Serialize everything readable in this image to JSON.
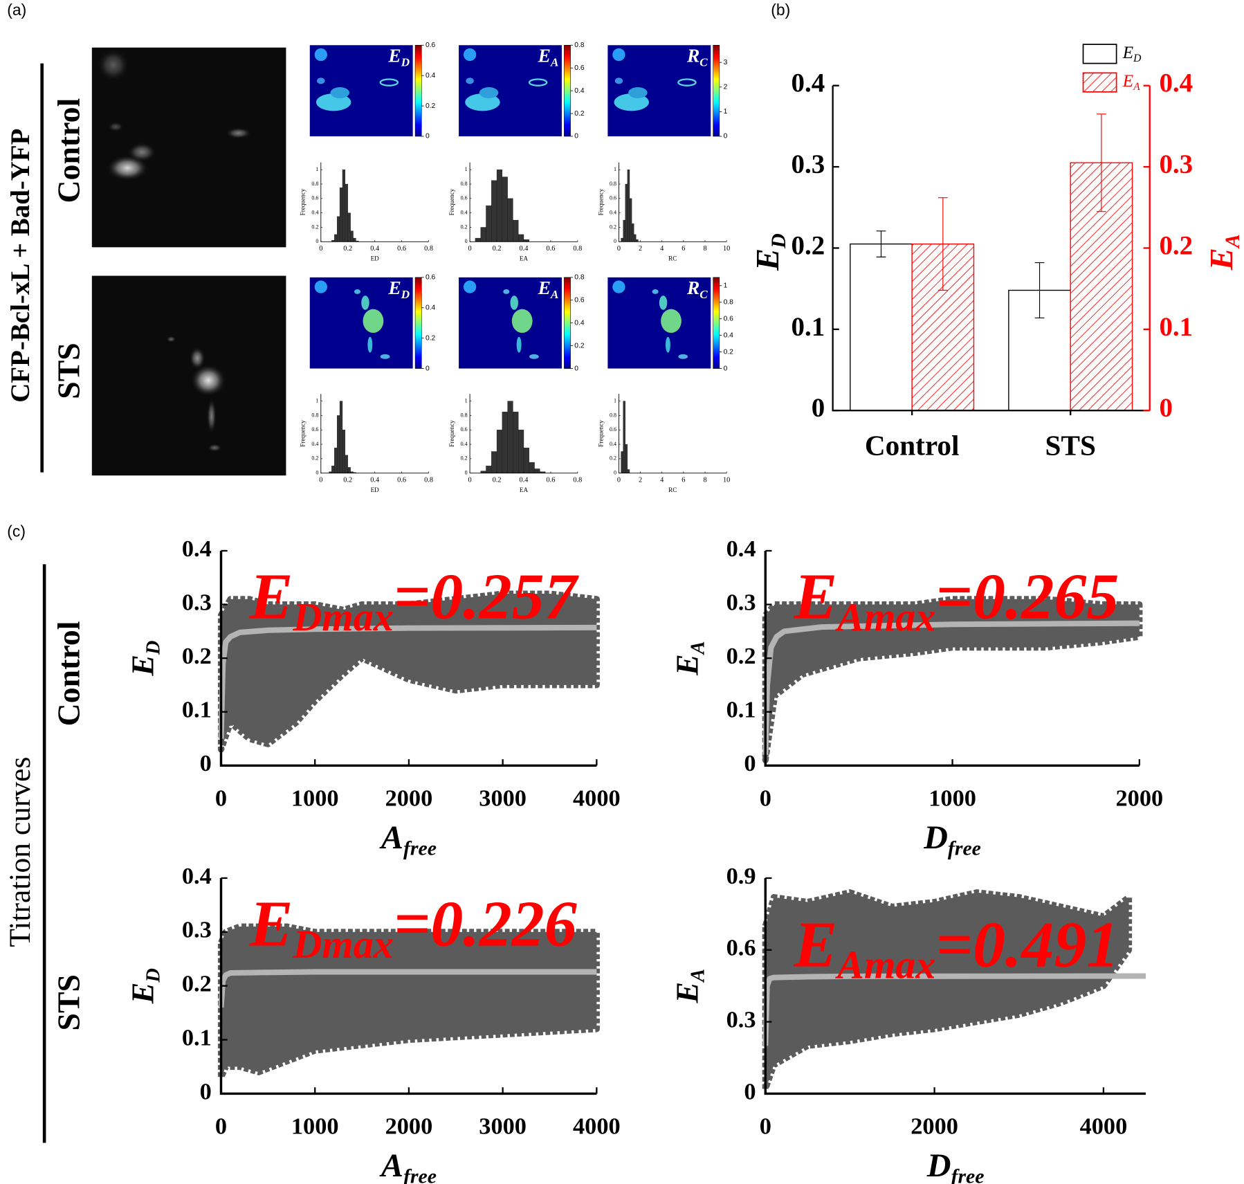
{
  "labels": {
    "a": "(a)",
    "b": "(b)",
    "c": "(c)",
    "construct": "CFP-Bcl-xL + Bad-YFP",
    "row_a_1": "Control",
    "row_a_2": "STS",
    "titration": "Titration curves",
    "row_c_1": "Control",
    "row_c_2": "STS"
  },
  "chart_data": [
    {
      "type": "colormap",
      "label": {
        "main": "E",
        "sub": "D"
      },
      "ylim": [
        0,
        0.6
      ],
      "yticks": [
        0,
        0.2,
        0.4,
        0.6
      ]
    },
    {
      "type": "colormap",
      "label": {
        "main": "E",
        "sub": "A"
      },
      "ylim": [
        0,
        0.8
      ],
      "yticks": [
        0,
        0.2,
        0.4,
        0.6,
        0.8
      ]
    },
    {
      "type": "colormap",
      "label": {
        "main": "R",
        "sub": "C"
      },
      "ylim": [
        0,
        3.7
      ],
      "yticks": [
        0,
        1,
        2,
        3
      ]
    },
    {
      "type": "histogram",
      "xlabel": "ED",
      "ylabel": "Frequency",
      "color": "#333333",
      "bins": [
        0.08,
        0.1,
        0.12,
        0.14,
        0.16,
        0.18,
        0.2,
        0.22,
        0.24,
        0.26,
        0.28
      ],
      "values": [
        0.02,
        0.1,
        0.35,
        0.75,
        1.0,
        0.8,
        0.4,
        0.15,
        0.05,
        0.01
      ],
      "xlim": [
        0,
        0.8
      ],
      "xticks": [
        0,
        0.2,
        0.4,
        0.6,
        0.8
      ],
      "ylim": [
        0,
        1.1
      ],
      "yticks": [
        0,
        0.2,
        0.4,
        0.6,
        0.8,
        1
      ]
    },
    {
      "type": "histogram",
      "xlabel": "EA",
      "ylabel": "Frequency",
      "color": "#333333",
      "bins": [
        0.04,
        0.08,
        0.12,
        0.16,
        0.2,
        0.24,
        0.28,
        0.32,
        0.36,
        0.4,
        0.44
      ],
      "values": [
        0.05,
        0.2,
        0.5,
        0.85,
        1.0,
        0.9,
        0.6,
        0.3,
        0.1,
        0.03
      ],
      "xlim": [
        0,
        0.8
      ],
      "xticks": [
        0,
        0.2,
        0.4,
        0.6,
        0.8
      ],
      "ylim": [
        0,
        1.1
      ],
      "yticks": [
        0,
        0.2,
        0.4,
        0.6,
        0.8,
        1
      ]
    },
    {
      "type": "histogram",
      "xlabel": "RC",
      "ylabel": "Frequency",
      "color": "#333333",
      "bins": [
        0.2,
        0.4,
        0.6,
        0.8,
        1.0,
        1.2,
        1.4,
        1.6,
        1.8
      ],
      "values": [
        0.05,
        0.3,
        0.8,
        1.0,
        0.6,
        0.25,
        0.1,
        0.03
      ],
      "xlim": [
        0,
        10
      ],
      "xticks": [
        0,
        2,
        4,
        6,
        8,
        10
      ],
      "ylim": [
        0,
        1.1
      ],
      "yticks": [
        0,
        0.2,
        0.4,
        0.6,
        0.8,
        1
      ]
    },
    {
      "type": "colormap",
      "label": {
        "main": "E",
        "sub": "D"
      },
      "ylim": [
        0,
        0.6
      ],
      "yticks": [
        0,
        0.2,
        0.4,
        0.6
      ]
    },
    {
      "type": "colormap",
      "label": {
        "main": "E",
        "sub": "A"
      },
      "ylim": [
        0,
        0.8
      ],
      "yticks": [
        0,
        0.2,
        0.4,
        0.6,
        0.8
      ]
    },
    {
      "type": "colormap",
      "label": {
        "main": "R",
        "sub": "C"
      },
      "ylim": [
        0,
        1.1
      ],
      "yticks": [
        0,
        0.2,
        0.4,
        0.6,
        0.8,
        1
      ]
    },
    {
      "type": "histogram",
      "xlabel": "ED",
      "ylabel": "Frequency",
      "color": "#333333",
      "bins": [
        0.06,
        0.08,
        0.1,
        0.12,
        0.14,
        0.16,
        0.18,
        0.2,
        0.22,
        0.24,
        0.26
      ],
      "values": [
        0.02,
        0.1,
        0.35,
        0.8,
        1.0,
        0.6,
        0.25,
        0.08,
        0.02,
        0.01
      ],
      "xlim": [
        0,
        0.8
      ],
      "xticks": [
        0,
        0.2,
        0.4,
        0.6,
        0.8
      ],
      "ylim": [
        0,
        1.1
      ],
      "yticks": [
        0,
        0.2,
        0.4,
        0.6,
        0.8,
        1
      ]
    },
    {
      "type": "histogram",
      "xlabel": "EA",
      "ylabel": "Frequency",
      "color": "#333333",
      "bins": [
        0.08,
        0.12,
        0.16,
        0.2,
        0.24,
        0.28,
        0.32,
        0.36,
        0.4,
        0.44,
        0.48,
        0.52,
        0.56
      ],
      "values": [
        0.03,
        0.1,
        0.3,
        0.6,
        0.85,
        1.0,
        0.85,
        0.6,
        0.35,
        0.15,
        0.06,
        0.02
      ],
      "xlim": [
        0,
        0.8
      ],
      "xticks": [
        0,
        0.2,
        0.4,
        0.6,
        0.8
      ],
      "ylim": [
        0,
        1.1
      ],
      "yticks": [
        0,
        0.2,
        0.4,
        0.6,
        0.8,
        1
      ]
    },
    {
      "type": "histogram",
      "xlabel": "RC",
      "ylabel": "Frequency",
      "color": "#333333",
      "bins": [
        0.2,
        0.4,
        0.6,
        0.8,
        1.0
      ],
      "values": [
        0.3,
        1.0,
        0.4,
        0.05
      ],
      "xlim": [
        0,
        10
      ],
      "xticks": [
        0,
        2,
        4,
        6,
        8,
        10
      ],
      "ylim": [
        0,
        1.1
      ],
      "yticks": [
        0,
        0.2,
        0.4,
        0.6,
        0.8,
        1
      ]
    },
    {
      "type": "bar",
      "categories": [
        "Control",
        "STS"
      ],
      "ylabel": {
        "main": "E",
        "sub": "D"
      },
      "y2label": {
        "main": "E",
        "sub": "A"
      },
      "series": [
        {
          "name": {
            "main": "E",
            "sub": "D"
          },
          "color": "#000000",
          "values": [
            0.205,
            0.148
          ],
          "errors": [
            0.016,
            0.034
          ]
        },
        {
          "name": {
            "main": "E",
            "sub": "A"
          },
          "color": "#ff0000",
          "hatch": true,
          "axis": "y2",
          "values": [
            0.205,
            0.305
          ],
          "errors": [
            0.057,
            0.06
          ]
        }
      ],
      "ylim": [
        0,
        0.4
      ],
      "yticks": [
        0,
        0.1,
        0.2,
        0.3,
        0.4
      ],
      "y2lim": [
        0,
        0.4
      ],
      "y2ticks": [
        0,
        0.1,
        0.2,
        0.3,
        0.4
      ]
    },
    {
      "type": "scatter",
      "xlabel": {
        "main": "A",
        "sub": "free"
      },
      "ylabel": {
        "main": "E",
        "sub": "D"
      },
      "annotation": {
        "main": "E",
        "sub": "Dmax",
        "rest": "=0.257"
      },
      "annotation_color": "#ff0000",
      "cloud_color": "#5b5b5b",
      "fit_color": "#b4b4b4",
      "cloud": {
        "x": [
          0,
          100,
          300,
          500,
          800,
          1000,
          1300,
          1500,
          2000,
          2500,
          3000,
          3500,
          4000
        ],
        "upper": [
          0.28,
          0.31,
          0.31,
          0.3,
          0.3,
          0.3,
          0.29,
          0.3,
          0.3,
          0.31,
          0.32,
          0.32,
          0.31
        ],
        "lower": [
          0.03,
          0.08,
          0.05,
          0.04,
          0.08,
          0.12,
          0.17,
          0.2,
          0.16,
          0.14,
          0.15,
          0.15,
          0.15
        ]
      },
      "fit": {
        "x": [
          0,
          20,
          50,
          100,
          200,
          500,
          1000,
          2000,
          4000
        ],
        "values": [
          0.05,
          0.19,
          0.23,
          0.24,
          0.248,
          0.252,
          0.254,
          0.256,
          0.257
        ]
      },
      "xlim": [
        0,
        4000
      ],
      "xticks": [
        0,
        1000,
        2000,
        3000,
        4000
      ],
      "ylim": [
        0,
        0.4
      ],
      "yticks": [
        0,
        0.1,
        0.2,
        0.3,
        0.4
      ]
    },
    {
      "type": "scatter",
      "xlabel": {
        "main": "D",
        "sub": "free"
      },
      "ylabel": {
        "main": "E",
        "sub": "A"
      },
      "annotation": {
        "main": "E",
        "sub": "Amax",
        "rest": "=0.265"
      },
      "annotation_color": "#ff0000",
      "cloud_color": "#5b5b5b",
      "fit_color": "#b4b4b4",
      "cloud": {
        "x": [
          0,
          50,
          200,
          500,
          800,
          1000,
          1300,
          1500,
          1800,
          2000
        ],
        "upper": [
          0.28,
          0.3,
          0.3,
          0.3,
          0.3,
          0.31,
          0.31,
          0.31,
          0.3,
          0.3
        ],
        "lower": [
          0.01,
          0.13,
          0.17,
          0.2,
          0.21,
          0.22,
          0.22,
          0.22,
          0.23,
          0.24
        ]
      },
      "fit": {
        "x": [
          0,
          10,
          30,
          60,
          100,
          300,
          1000,
          2000
        ],
        "values": [
          0.02,
          0.15,
          0.22,
          0.24,
          0.25,
          0.258,
          0.263,
          0.265
        ]
      },
      "xlim": [
        0,
        2000
      ],
      "xticks": [
        0,
        1000,
        2000
      ],
      "ylim": [
        0,
        0.4
      ],
      "yticks": [
        0,
        0.1,
        0.2,
        0.3,
        0.4
      ]
    },
    {
      "type": "scatter",
      "xlabel": {
        "main": "A",
        "sub": "free"
      },
      "ylabel": {
        "main": "E",
        "sub": "D"
      },
      "annotation": {
        "main": "E",
        "sub": "Dmax",
        "rest": "=0.226"
      },
      "annotation_color": "#ff0000",
      "cloud_color": "#5b5b5b",
      "fit_color": "#b4b4b4",
      "cloud": {
        "x": [
          0,
          50,
          200,
          400,
          700,
          1000,
          2000,
          3000,
          4000
        ],
        "upper": [
          0.28,
          0.3,
          0.31,
          0.31,
          0.31,
          0.3,
          0.3,
          0.3,
          0.3
        ],
        "lower": [
          0.03,
          0.05,
          0.05,
          0.04,
          0.06,
          0.08,
          0.1,
          0.11,
          0.12
        ]
      },
      "fit": {
        "x": [
          0,
          20,
          50,
          100,
          500,
          1000,
          4000
        ],
        "values": [
          0.16,
          0.21,
          0.22,
          0.224,
          0.225,
          0.226,
          0.226
        ]
      },
      "xlim": [
        0,
        4000
      ],
      "xticks": [
        0,
        1000,
        2000,
        3000,
        4000
      ],
      "ylim": [
        0,
        0.4
      ],
      "yticks": [
        0,
        0.1,
        0.2,
        0.3,
        0.4
      ]
    },
    {
      "type": "scatter",
      "xlabel": {
        "main": "D",
        "sub": "free"
      },
      "ylabel": {
        "main": "E",
        "sub": "A"
      },
      "annotation": {
        "main": "E",
        "sub": "Amax",
        "rest": "=0.491"
      },
      "annotation_color": "#ff0000",
      "cloud_color": "#5b5b5b",
      "fit_color": "#b4b4b4",
      "cloud": {
        "x": [
          0,
          100,
          500,
          1000,
          1500,
          2000,
          2500,
          3000,
          3500,
          4000,
          4300
        ],
        "upper": [
          0.7,
          0.82,
          0.8,
          0.84,
          0.78,
          0.8,
          0.84,
          0.82,
          0.78,
          0.74,
          0.82
        ],
        "lower": [
          0.02,
          0.12,
          0.2,
          0.22,
          0.25,
          0.27,
          0.3,
          0.33,
          0.38,
          0.45,
          0.6
        ]
      },
      "fit": {
        "x": [
          0,
          20,
          50,
          100,
          500,
          1000,
          4500
        ],
        "values": [
          0.2,
          0.45,
          0.48,
          0.485,
          0.488,
          0.49,
          0.491
        ]
      },
      "xlim": [
        0,
        4500
      ],
      "xticks": [
        0,
        2000,
        4000
      ],
      "ylim": [
        0,
        0.9
      ],
      "yticks": [
        0,
        0.3,
        0.6,
        0.9
      ]
    }
  ]
}
